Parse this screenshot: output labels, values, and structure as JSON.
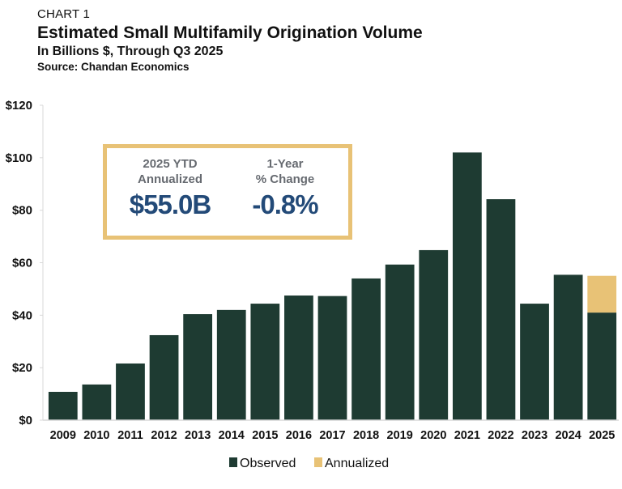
{
  "header": {
    "label": "CHART 1",
    "title": "Estimated Small Multifamily Origination Volume",
    "subtitle": "In Billions $, Through Q3 2025",
    "source": "Source: Chandan Economics"
  },
  "kpi_box": {
    "left": {
      "label_line1": "2025 YTD",
      "label_line2": "Annualized",
      "value": "$55.0B"
    },
    "right": {
      "label_line1": "1-Year",
      "label_line2": "% Change",
      "value": "-0.8%"
    },
    "border_color": "#e8c276",
    "value_color": "#234a78"
  },
  "colors": {
    "observed": "#1e3b32",
    "annualized": "#e8c276",
    "axis": "#d9d9d9"
  },
  "chart_data": {
    "type": "bar",
    "stacked": true,
    "title": "Estimated Small Multifamily Origination Volume",
    "subtitle": "In Billions $, Through Q3 2025",
    "xlabel": "",
    "ylabel": "",
    "ylim": [
      0,
      120
    ],
    "yticks": [
      0,
      20,
      40,
      60,
      80,
      100,
      120
    ],
    "ytick_labels": [
      "$0",
      "$20",
      "$40",
      "$60",
      "$80",
      "$100",
      "$120"
    ],
    "grid": false,
    "legend_position": "bottom-center",
    "categories": [
      "2009",
      "2010",
      "2011",
      "2012",
      "2013",
      "2014",
      "2015",
      "2016",
      "2017",
      "2018",
      "2019",
      "2020",
      "2021",
      "2022",
      "2023",
      "2024",
      "2025"
    ],
    "series": [
      {
        "name": "Observed",
        "color": "#1e3b32",
        "values": [
          10.8,
          13.6,
          21.6,
          32.4,
          40.4,
          42.0,
          44.4,
          47.5,
          47.3,
          54.0,
          59.3,
          64.8,
          102.0,
          84.2,
          44.4,
          55.4,
          41.0
        ]
      },
      {
        "name": "Annualized",
        "color": "#e8c276",
        "values": [
          0,
          0,
          0,
          0,
          0,
          0,
          0,
          0,
          0,
          0,
          0,
          0,
          0,
          0,
          0,
          0,
          14.0
        ]
      }
    ]
  }
}
